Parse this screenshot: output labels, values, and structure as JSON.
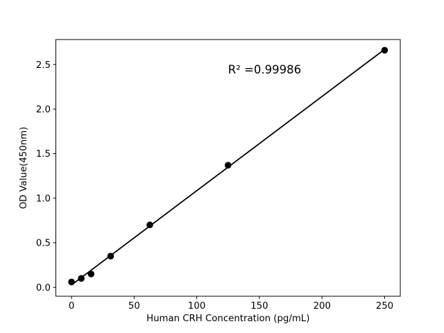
{
  "figure": {
    "background_color": "#ffffff"
  },
  "chart_data": {
    "type": "scatter",
    "title": "",
    "xlabel": "Human CRH Concentration (pg/mL)",
    "ylabel": "OD Value(450nm)",
    "x": [
      0,
      7.8,
      15.6,
      31.25,
      62.5,
      125,
      250
    ],
    "y": [
      0.06,
      0.1,
      0.15,
      0.35,
      0.7,
      1.37,
      2.66
    ],
    "xticks": [
      0,
      50,
      100,
      150,
      200,
      250
    ],
    "yticks": [
      0.0,
      0.5,
      1.0,
      1.5,
      2.0,
      2.5
    ],
    "xlim": [
      -12.5,
      262.5
    ],
    "ylim": [
      -0.1,
      2.78
    ],
    "grid": false,
    "legend": false,
    "fit_line": {
      "type": "linear",
      "r_squared": 0.99986
    },
    "annotation": {
      "text": "R² =0.99986",
      "x": 125,
      "y": 2.4,
      "anchor": "start"
    },
    "marker_color": "#000000",
    "line_color": "#000000",
    "axis_color": "#000000",
    "text_color": "#000000"
  }
}
